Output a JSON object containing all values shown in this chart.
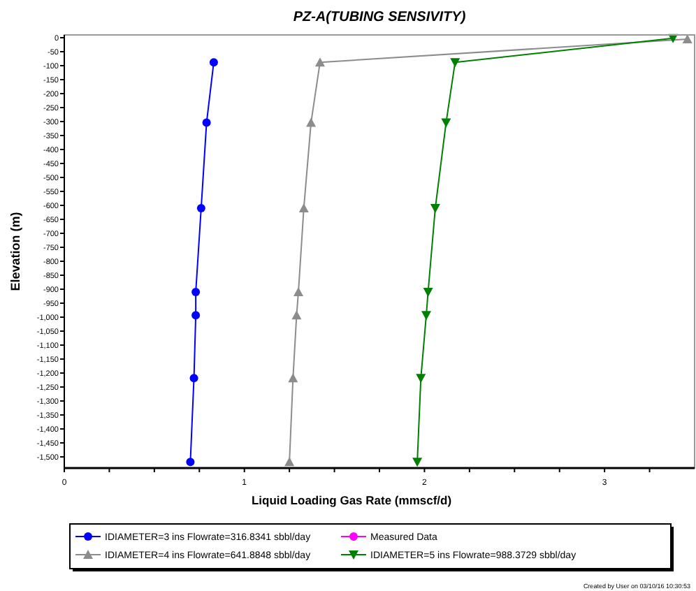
{
  "chart_data": {
    "type": "line",
    "title": "PZ-A(TUBING SENSIVITY)",
    "xlabel": "Liquid Loading Gas Rate (mmscf/d)",
    "ylabel": "Elevation (m)",
    "xlim": [
      0,
      3.5
    ],
    "xticks": [
      0,
      {
        "value": 0.25,
        "label": null
      },
      {
        "value": 0.5,
        "label": null
      },
      {
        "value": 0.75,
        "label": null
      },
      1,
      {
        "value": 1.25,
        "label": null
      },
      {
        "value": 1.5,
        "label": null
      },
      {
        "value": 1.75,
        "label": null
      },
      2,
      {
        "value": 2.25,
        "label": null
      },
      {
        "value": 2.5,
        "label": null
      },
      {
        "value": 2.75,
        "label": null
      },
      3,
      {
        "value": 3.25,
        "label": null
      }
    ],
    "ylim": [
      -1540,
      10
    ],
    "yticks": [
      0,
      -50,
      -100,
      -150,
      -200,
      -250,
      -300,
      -350,
      -400,
      -450,
      -500,
      -550,
      -600,
      -650,
      -700,
      -750,
      -800,
      -850,
      -900,
      -950,
      {
        "value": -1000,
        "label": "-1,000"
      },
      {
        "value": -1050,
        "label": "-1,050"
      },
      {
        "value": -1100,
        "label": "-1,100"
      },
      {
        "value": -1150,
        "label": "-1,150"
      },
      {
        "value": -1200,
        "label": "-1,200"
      },
      {
        "value": -1250,
        "label": "-1,250"
      },
      {
        "value": -1300,
        "label": "-1,300"
      },
      {
        "value": -1350,
        "label": "-1,350"
      },
      {
        "value": -1400,
        "label": "-1,400"
      },
      {
        "value": -1450,
        "label": "-1,450"
      },
      {
        "value": -1500,
        "label": "-1,500"
      }
    ],
    "legend": "bottom",
    "line_style": "solid",
    "series": [
      {
        "name": "IDIAMETER=3 ins Flowrate=316.8341 sbbl/day",
        "color": "#0000ff",
        "marker": "circle",
        "x": [
          0.83,
          0.79,
          0.76,
          0.73,
          0.73,
          0.72,
          0.7
        ],
        "values": [
          -88,
          -304,
          -610,
          -910,
          -993,
          -1218,
          -1518
        ]
      },
      {
        "name": "IDIAMETER=4 ins Flowrate=641.8848 sbbl/day",
        "color": "#8c8c8c",
        "marker": "triangle",
        "x": [
          3.46,
          1.42,
          1.37,
          1.33,
          1.3,
          1.29,
          1.27,
          1.25
        ],
        "values": [
          -5,
          -88,
          -304,
          -610,
          -910,
          -993,
          -1218,
          -1518
        ]
      },
      {
        "name": "Measured Data",
        "color": "#ff00ff",
        "marker": "circle"
      },
      {
        "name": "IDIAMETER=5 ins Flowrate=988.3729 sbbl/day",
        "color": "#008000",
        "marker": "triangle-down",
        "x": [
          3.38,
          2.17,
          2.12,
          2.06,
          2.02,
          2.01,
          1.98,
          1.96
        ],
        "values": [
          -2,
          -88,
          -304,
          -610,
          -910,
          -993,
          -1218,
          -1518
        ]
      }
    ],
    "annotations": [
      "Created by User on 03/10/16 10:30:53"
    ]
  }
}
